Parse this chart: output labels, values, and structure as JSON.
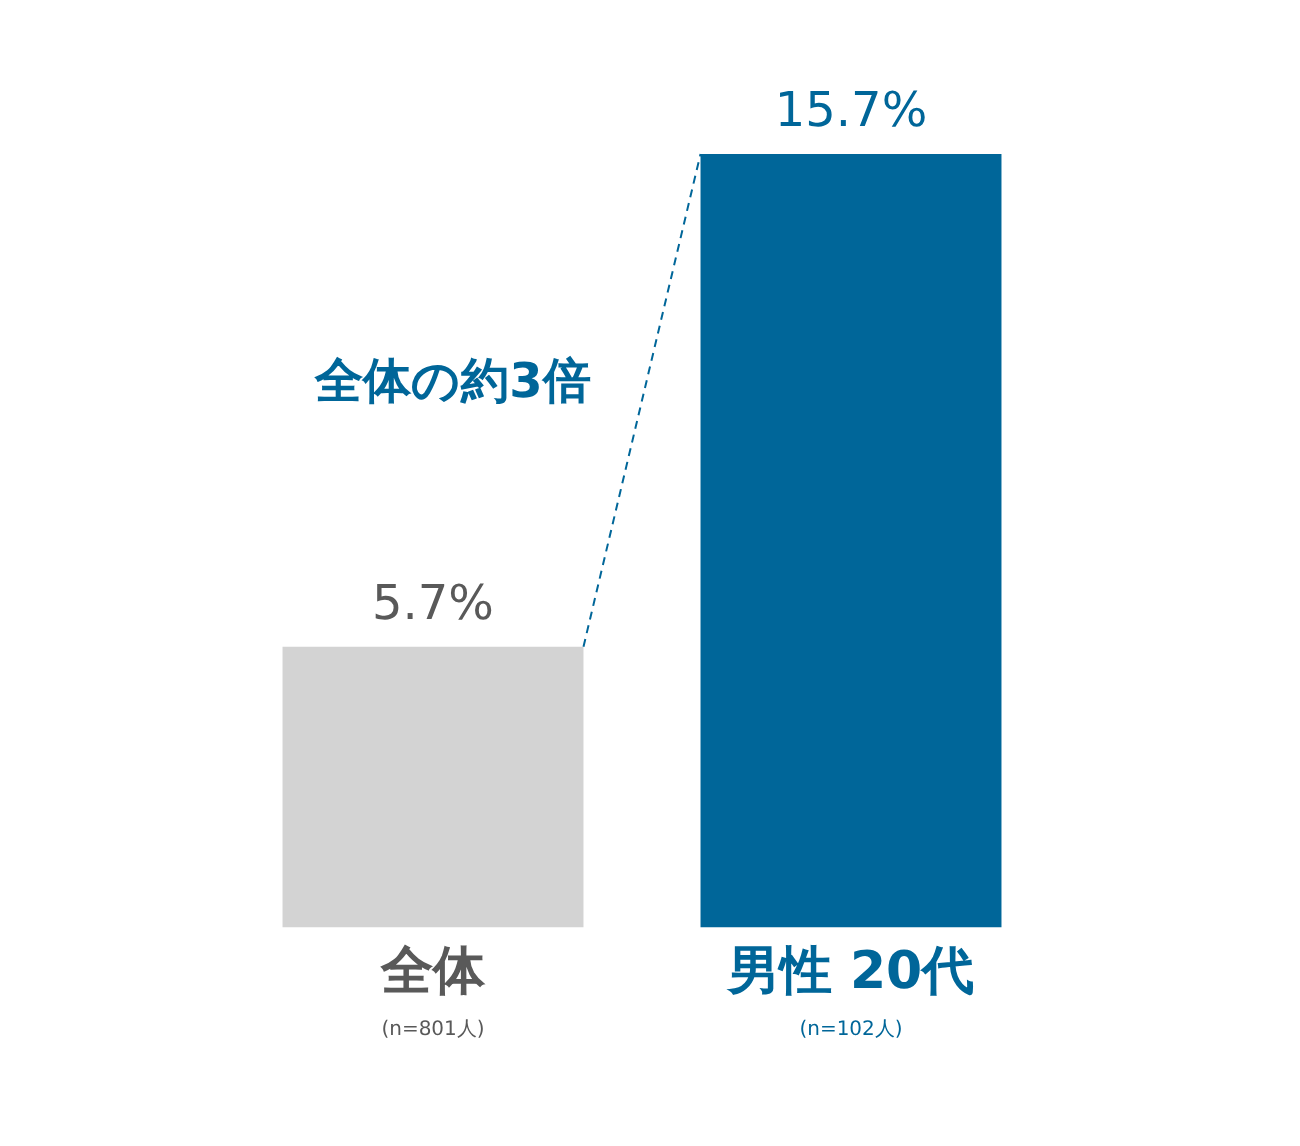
{
  "chart_data": {
    "type": "bar",
    "categories": [
      "全体",
      "男性 20代"
    ],
    "values": [
      5.7,
      15.7
    ],
    "colors": [
      "#d3d3d3",
      "#006699"
    ],
    "value_labels": [
      "5.7%",
      "15.7%"
    ],
    "annotations": [
      "全体の約3倍",
      "(n=801人)",
      "(n=102人)"
    ],
    "grid": false,
    "legend": false,
    "tick_labels": "x"
  }
}
